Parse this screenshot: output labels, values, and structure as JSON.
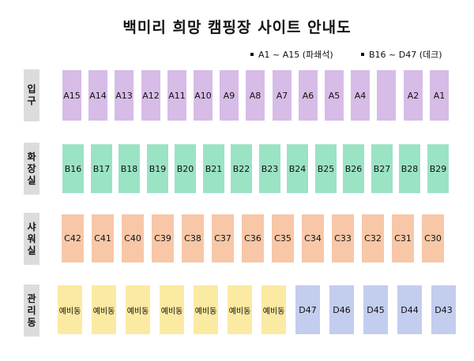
{
  "title": "백미리 희망 캠핑장 사이트 안내도",
  "legend": [
    {
      "text": "A1 ~ A15 (파쇄석)"
    },
    {
      "text": "B16 ~ D47 (데크)"
    }
  ],
  "rows": [
    {
      "label": [
        "입",
        "구"
      ],
      "color": "#d6bce6",
      "sites": [
        "A15",
        "A14",
        "A13",
        "A12",
        "A11",
        "A10",
        "A9",
        "A8",
        "A7",
        "A6",
        "A5",
        "A4",
        "",
        "A2",
        "A1"
      ]
    },
    {
      "label": [
        "화",
        "장",
        "실"
      ],
      "color": "#9be3c5",
      "sites": [
        "B16",
        "B17",
        "B18",
        "B19",
        "B20",
        "B21",
        "B22",
        "B23",
        "B24",
        "B25",
        "B26",
        "B27",
        "B28",
        "B29"
      ]
    },
    {
      "label": [
        "샤",
        "워",
        "실"
      ],
      "color": "#f7c7a8",
      "sites": [
        "C42",
        "C41",
        "C40",
        "C39",
        "C38",
        "C37",
        "C36",
        "C35",
        "C34",
        "C33",
        "C32",
        "C31",
        "C30"
      ]
    },
    {
      "label": [
        "관",
        "리",
        "동"
      ],
      "colors": {
        "reserve": "#fbeaa2",
        "deck": "#c3cdee"
      },
      "sites": [
        "예비동",
        "예비동",
        "예비동",
        "예비동",
        "예비동",
        "예비동",
        "예비동",
        "D47",
        "D46",
        "D45",
        "D44",
        "D43"
      ]
    }
  ]
}
